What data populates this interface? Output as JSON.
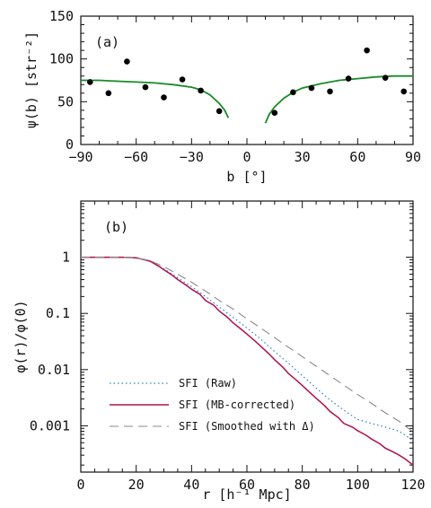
{
  "chart_data": [
    {
      "type": "scatter",
      "panel_label": "(a)",
      "xlabel": "b [°]",
      "ylabel": "ψ(b) [str⁻²]",
      "xlim": [
        -90,
        90
      ],
      "ylim": [
        0,
        150
      ],
      "xticks": [
        -90,
        -60,
        -30,
        0,
        30,
        60,
        90
      ],
      "yticks": [
        0,
        50,
        100,
        150
      ],
      "points": [
        {
          "x": -85,
          "y": 73
        },
        {
          "x": -75,
          "y": 60
        },
        {
          "x": -65,
          "y": 97
        },
        {
          "x": -55,
          "y": 67
        },
        {
          "x": -45,
          "y": 55
        },
        {
          "x": -35,
          "y": 76
        },
        {
          "x": -25,
          "y": 63
        },
        {
          "x": -15,
          "y": 39
        },
        {
          "x": 15,
          "y": 37
        },
        {
          "x": 25,
          "y": 61
        },
        {
          "x": 35,
          "y": 66
        },
        {
          "x": 45,
          "y": 62
        },
        {
          "x": 55,
          "y": 77
        },
        {
          "x": 65,
          "y": 110
        },
        {
          "x": 75,
          "y": 78
        },
        {
          "x": 85,
          "y": 62
        }
      ],
      "curves": [
        {
          "color": "#1a8a2a",
          "points": [
            [
              -90,
              75
            ],
            [
              -80,
              75
            ],
            [
              -70,
              74
            ],
            [
              -60,
              73
            ],
            [
              -50,
              72
            ],
            [
              -40,
              70
            ],
            [
              -30,
              67
            ],
            [
              -25,
              64
            ],
            [
              -20,
              58
            ],
            [
              -15,
              48
            ],
            [
              -12,
              40
            ],
            [
              -10,
              31
            ]
          ]
        },
        {
          "color": "#1a8a2a",
          "points": [
            [
              10,
              25
            ],
            [
              12,
              35
            ],
            [
              15,
              44
            ],
            [
              20,
              54
            ],
            [
              25,
              61
            ],
            [
              30,
              66
            ],
            [
              40,
              71
            ],
            [
              50,
              75
            ],
            [
              60,
              77
            ],
            [
              70,
              79
            ],
            [
              80,
              80
            ],
            [
              90,
              80
            ]
          ]
        }
      ]
    },
    {
      "type": "line",
      "panel_label": "(b)",
      "xlabel": "r [h⁻¹ Mpc]",
      "ylabel": "φ(r)/φ(0)",
      "xlim": [
        0,
        120
      ],
      "ylim": [
        0.00015,
        10
      ],
      "yscale": "log",
      "xticks": [
        0,
        20,
        40,
        60,
        80,
        100,
        120
      ],
      "ytick_values": [
        1,
        0.1,
        0.01,
        0.001
      ],
      "ytick_labels": [
        "1",
        "0.1",
        "0.01",
        "0.001"
      ],
      "legend_position": "bottom-left",
      "series": [
        {
          "name": "SFI (Raw)",
          "color": "#2a7fc8",
          "dash": "1.5,3",
          "points": [
            [
              0,
              1
            ],
            [
              10,
              1
            ],
            [
              15,
              1
            ],
            [
              20,
              0.98
            ],
            [
              25,
              0.85
            ],
            [
              30,
              0.62
            ],
            [
              35,
              0.43
            ],
            [
              40,
              0.3
            ],
            [
              45,
              0.2
            ],
            [
              50,
              0.13
            ],
            [
              55,
              0.085
            ],
            [
              60,
              0.055
            ],
            [
              65,
              0.035
            ],
            [
              70,
              0.021
            ],
            [
              75,
              0.013
            ],
            [
              80,
              0.0078
            ],
            [
              85,
              0.0047
            ],
            [
              90,
              0.0029
            ],
            [
              95,
              0.0019
            ],
            [
              100,
              0.0013
            ],
            [
              105,
              0.0011
            ],
            [
              110,
              0.00095
            ],
            [
              115,
              0.0008
            ],
            [
              120,
              0.00055
            ]
          ]
        },
        {
          "name": "SFI (MB-corrected)",
          "color": "#b0104f",
          "dash": "",
          "points": [
            [
              0,
              1
            ],
            [
              10,
              1
            ],
            [
              15,
              1
            ],
            [
              20,
              0.98
            ],
            [
              25,
              0.85
            ],
            [
              28,
              0.7
            ],
            [
              30,
              0.6
            ],
            [
              33,
              0.48
            ],
            [
              35,
              0.4
            ],
            [
              38,
              0.32
            ],
            [
              40,
              0.27
            ],
            [
              43,
              0.22
            ],
            [
              45,
              0.17
            ],
            [
              48,
              0.14
            ],
            [
              50,
              0.11
            ],
            [
              53,
              0.085
            ],
            [
              55,
              0.068
            ],
            [
              58,
              0.052
            ],
            [
              60,
              0.043
            ],
            [
              63,
              0.032
            ],
            [
              65,
              0.026
            ],
            [
              68,
              0.019
            ],
            [
              70,
              0.015
            ],
            [
              73,
              0.011
            ],
            [
              75,
              0.0085
            ],
            [
              78,
              0.0064
            ],
            [
              80,
              0.0052
            ],
            [
              83,
              0.0038
            ],
            [
              85,
              0.0031
            ],
            [
              88,
              0.0023
            ],
            [
              90,
              0.0018
            ],
            [
              93,
              0.0014
            ],
            [
              95,
              0.0011
            ],
            [
              98,
              0.00095
            ],
            [
              100,
              0.00082
            ],
            [
              103,
              0.00068
            ],
            [
              105,
              0.00058
            ],
            [
              108,
              0.00048
            ],
            [
              110,
              0.0004
            ],
            [
              113,
              0.00034
            ],
            [
              115,
              0.0003
            ],
            [
              117,
              0.00026
            ],
            [
              120,
              0.0002
            ]
          ]
        },
        {
          "name": "SFI (Smoothed with Δ)",
          "color": "#8a8a8a",
          "dash": "10,6",
          "points": [
            [
              0,
              1
            ],
            [
              10,
              1
            ],
            [
              15,
              1
            ],
            [
              20,
              0.98
            ],
            [
              25,
              0.87
            ],
            [
              30,
              0.68
            ],
            [
              35,
              0.5
            ],
            [
              40,
              0.36
            ],
            [
              45,
              0.25
            ],
            [
              50,
              0.17
            ],
            [
              55,
              0.12
            ],
            [
              60,
              0.08
            ],
            [
              65,
              0.055
            ],
            [
              70,
              0.037
            ],
            [
              75,
              0.025
            ],
            [
              80,
              0.017
            ],
            [
              85,
              0.0115
            ],
            [
              90,
              0.0078
            ],
            [
              95,
              0.0053
            ],
            [
              100,
              0.0036
            ],
            [
              105,
              0.0025
            ],
            [
              110,
              0.0017
            ],
            [
              115,
              0.0012
            ],
            [
              120,
              0.00078
            ]
          ]
        }
      ]
    }
  ]
}
